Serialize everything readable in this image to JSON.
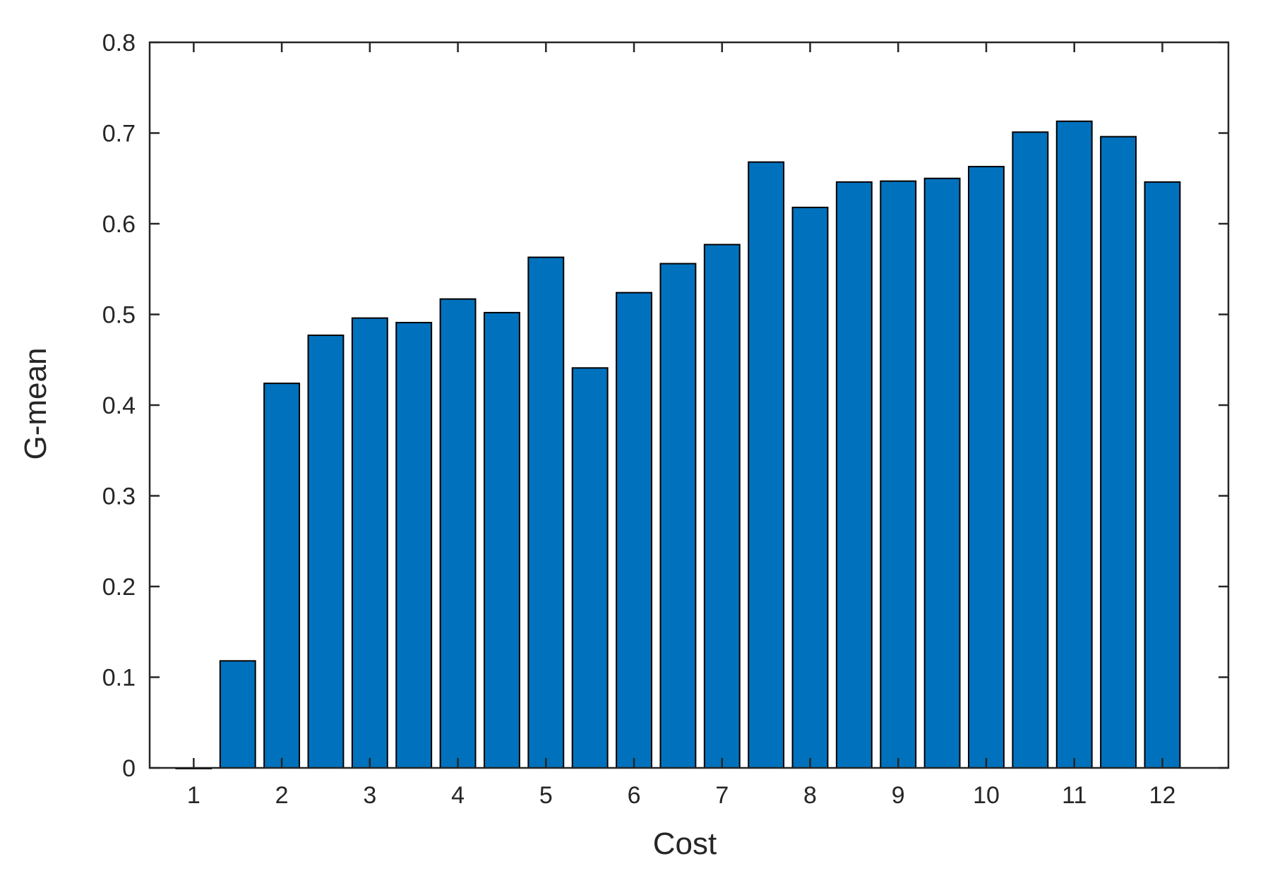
{
  "chart_data": {
    "type": "bar",
    "xlabel": "Cost",
    "ylabel": "G-mean",
    "xlim": [
      0.5,
      12.75
    ],
    "ylim": [
      0,
      0.8
    ],
    "x_ticks": [
      1,
      2,
      3,
      4,
      5,
      6,
      7,
      8,
      9,
      10,
      11,
      12
    ],
    "y_ticks": [
      0,
      0.1,
      0.2,
      0.3,
      0.4,
      0.5,
      0.6,
      0.7,
      0.8
    ],
    "x_tick_labels": [
      "1",
      "2",
      "3",
      "4",
      "5",
      "6",
      "7",
      "8",
      "9",
      "10",
      "11",
      "12"
    ],
    "y_tick_labels": [
      "0",
      "0.1",
      "0.2",
      "0.3",
      "0.4",
      "0.5",
      "0.6",
      "0.7",
      "0.8"
    ],
    "grid": false,
    "bar_color": "#0072BD",
    "x": [
      1,
      1.5,
      2,
      2.5,
      3,
      3.5,
      4,
      4.5,
      5,
      5.5,
      6,
      6.5,
      7,
      7.5,
      8,
      8.5,
      9,
      9.5,
      10,
      10.5,
      11,
      11.5,
      12
    ],
    "values": [
      0.0,
      0.118,
      0.424,
      0.477,
      0.496,
      0.491,
      0.517,
      0.502,
      0.563,
      0.441,
      0.524,
      0.556,
      0.577,
      0.668,
      0.618,
      0.646,
      0.647,
      0.65,
      0.663,
      0.701,
      0.713,
      0.696,
      0.646
    ]
  }
}
